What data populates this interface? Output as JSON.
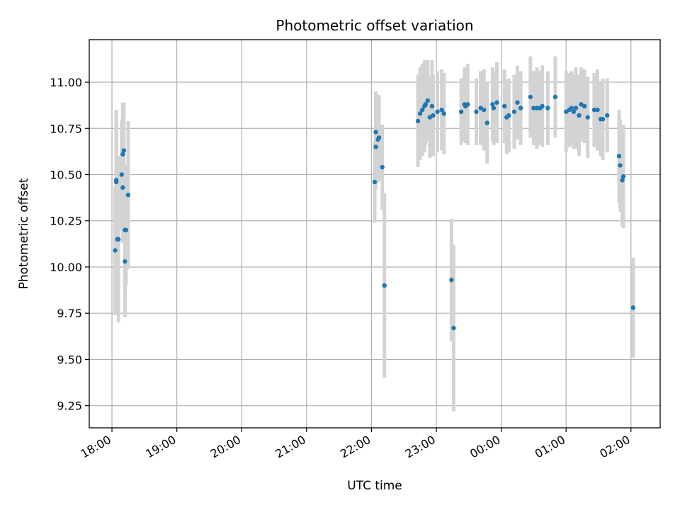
{
  "chart_data": {
    "type": "scatter",
    "title": "Photometric offset variation",
    "xlabel": "UTC time",
    "ylabel": "Photometric offset",
    "x_tick_labels": [
      "18:00",
      "19:00",
      "20:00",
      "21:00",
      "22:00",
      "23:00",
      "00:00",
      "01:00",
      "02:00"
    ],
    "y_tick_labels": [
      "9.25",
      "9.50",
      "9.75",
      "10.00",
      "10.25",
      "10.50",
      "10.75",
      "11.00"
    ],
    "y_ticks": [
      9.25,
      9.5,
      9.75,
      10.0,
      10.25,
      10.5,
      10.75,
      11.0
    ],
    "x_ticks": [
      "18:00",
      "19:00",
      "20:00",
      "21:00",
      "22:00",
      "23:00",
      "24:00",
      "25:00",
      "26:00"
    ],
    "xlim": [
      "17:39",
      "26:27"
    ],
    "ylim": [
      9.13,
      11.23
    ],
    "grid": true,
    "colors": {
      "marker": "#1f77b4",
      "errorbar": "#d3d3d3",
      "grid": "#b0b0b0"
    },
    "series": [
      {
        "x": [
          "18:03",
          "18:04",
          "18:04",
          "18:05",
          "18:06",
          "18:09",
          "18:10",
          "18:10",
          "18:11",
          "18:12",
          "18:12",
          "18:13",
          "18:15",
          "22:03",
          "22:04",
          "22:04",
          "22:06",
          "22:07",
          "22:10",
          "22:12",
          "22:43",
          "22:45",
          "22:47",
          "22:49",
          "22:50",
          "22:52",
          "22:54",
          "22:56",
          "22:57",
          "23:01",
          "23:05",
          "23:07",
          "23:14",
          "23:16",
          "23:23",
          "23:26",
          "23:27",
          "23:29",
          "23:37",
          "23:41",
          "23:44",
          "23:47",
          "23:52",
          "23:53",
          "23:56",
          "24:03",
          "24:05",
          "24:07",
          "24:12",
          "24:15",
          "24:18",
          "24:27",
          "24:30",
          "24:33",
          "24:36",
          "24:38",
          "24:43",
          "24:50",
          "25:00",
          "25:03",
          "25:05",
          "25:07",
          "25:09",
          "25:12",
          "25:14",
          "25:17",
          "25:20",
          "25:26",
          "25:29",
          "25:32",
          "25:34",
          "25:38",
          "25:49",
          "25:50",
          "25:52",
          "25:53",
          "26:02"
        ],
        "y": [
          10.09,
          10.46,
          10.47,
          10.15,
          10.15,
          10.5,
          10.43,
          10.61,
          10.63,
          10.03,
          10.2,
          10.2,
          10.39,
          10.46,
          10.65,
          10.73,
          10.69,
          10.7,
          10.54,
          9.9,
          10.79,
          10.83,
          10.85,
          10.87,
          10.88,
          10.9,
          10.81,
          10.87,
          10.82,
          10.84,
          10.85,
          10.83,
          9.93,
          9.67,
          10.84,
          10.88,
          10.87,
          10.88,
          10.84,
          10.86,
          10.85,
          10.78,
          10.88,
          10.86,
          10.89,
          10.87,
          10.81,
          10.82,
          10.84,
          10.89,
          10.86,
          10.92,
          10.86,
          10.86,
          10.86,
          10.87,
          10.86,
          10.92,
          10.84,
          10.85,
          10.86,
          10.84,
          10.86,
          10.82,
          10.88,
          10.87,
          10.81,
          10.85,
          10.85,
          10.8,
          10.8,
          10.82,
          10.6,
          10.55,
          10.47,
          10.49,
          9.78
        ],
        "yerr": [
          0.35,
          0.35,
          0.38,
          0.35,
          0.45,
          0.3,
          0.3,
          0.28,
          0.26,
          0.3,
          0.35,
          0.3,
          0.4,
          0.22,
          0.23,
          0.22,
          0.23,
          0.23,
          0.23,
          0.5,
          0.25,
          0.25,
          0.25,
          0.25,
          0.22,
          0.22,
          0.22,
          0.25,
          0.22,
          0.22,
          0.22,
          0.22,
          0.33,
          0.45,
          0.18,
          0.2,
          0.2,
          0.22,
          0.18,
          0.2,
          0.22,
          0.22,
          0.2,
          0.2,
          0.22,
          0.2,
          0.2,
          0.2,
          0.2,
          0.2,
          0.2,
          0.22,
          0.2,
          0.22,
          0.2,
          0.22,
          0.2,
          0.22,
          0.22,
          0.2,
          0.2,
          0.2,
          0.22,
          0.22,
          0.2,
          0.2,
          0.22,
          0.2,
          0.22,
          0.2,
          0.22,
          0.2,
          0.25,
          0.25,
          0.25,
          0.28,
          0.27
        ]
      }
    ]
  }
}
